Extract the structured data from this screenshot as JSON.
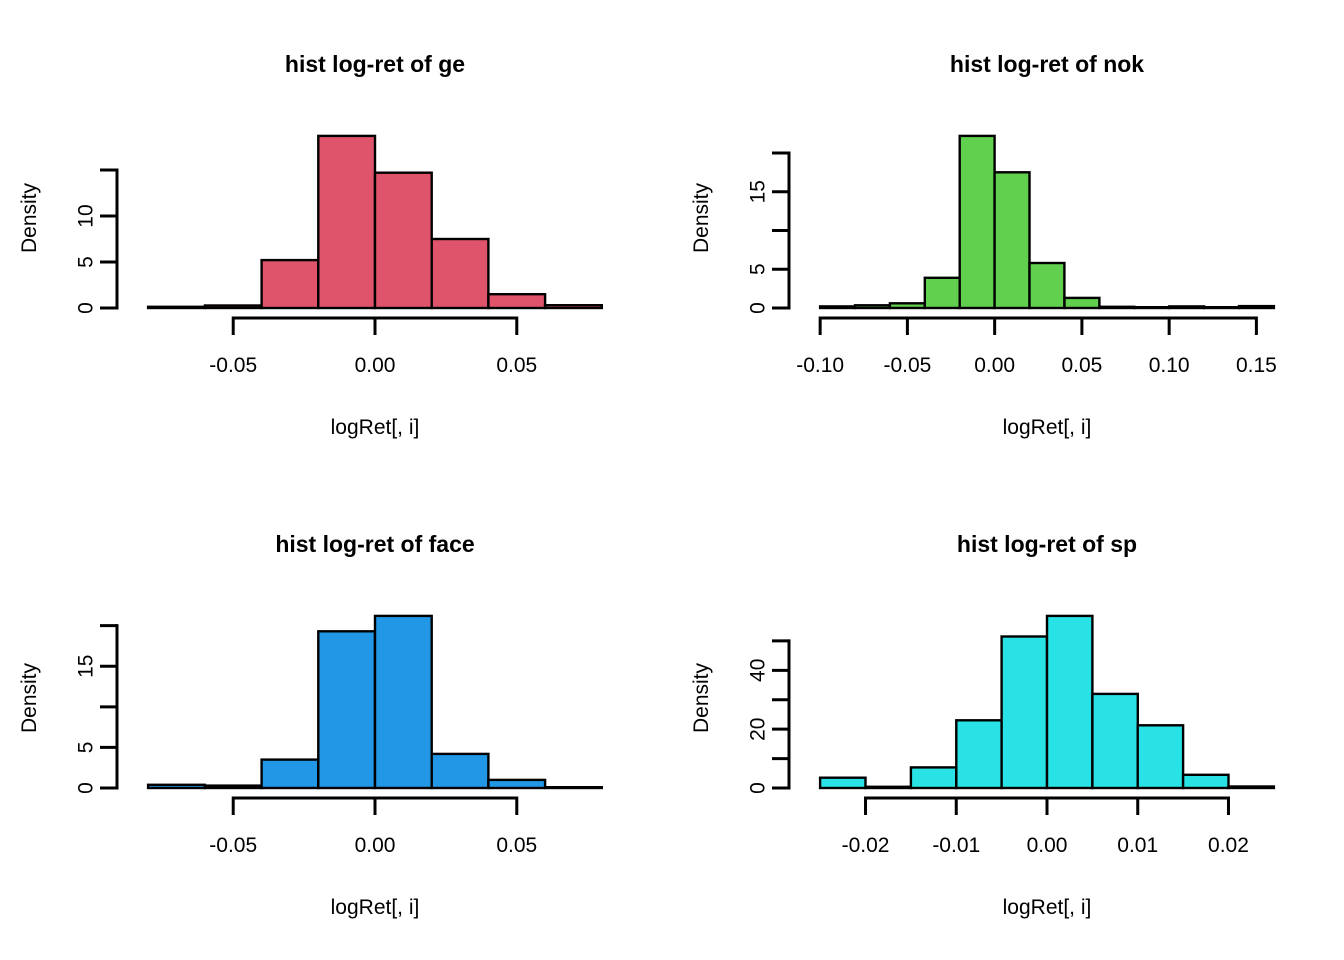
{
  "figure": {
    "background": "#ffffff",
    "layout": "2x2 grid of R base-graphics histograms",
    "grid": false,
    "legend": null
  },
  "chart_data": [
    {
      "type": "bar",
      "subtype": "histogram",
      "title": "hist log-ret of ge",
      "xlabel": "logRet[, i]",
      "ylabel": "Density",
      "color": "#DF536B",
      "bin_start": -0.08,
      "bin_width": 0.02,
      "densities": [
        0.13,
        0.27,
        5.2,
        18.7,
        14.7,
        7.5,
        1.5,
        0.3
      ],
      "x_tick_values": [
        -0.05,
        0,
        0.05
      ],
      "x_ticks": [
        "-0.05",
        "0.00",
        "0.05"
      ],
      "y_tick_values": [
        0,
        5,
        10,
        15
      ],
      "y_ticks": [
        "0",
        "5",
        "10",
        ""
      ],
      "xlim": [
        -0.08,
        0.08
      ],
      "ylim": [
        0,
        15
      ],
      "grid": false,
      "legend": null
    },
    {
      "type": "bar",
      "subtype": "histogram",
      "title": "hist log-ret of nok",
      "xlabel": "logRet[, i]",
      "ylabel": "Density",
      "color": "#61D04F",
      "bin_start": -0.1,
      "bin_width": 0.02,
      "densities": [
        0.2,
        0.35,
        0.6,
        3.9,
        22.2,
        17.5,
        5.8,
        1.3,
        0.15,
        0.1,
        0.2,
        0.1,
        0.25
      ],
      "x_tick_values": [
        -0.1,
        -0.05,
        0,
        0.05,
        0.1,
        0.15
      ],
      "x_ticks": [
        "-0.10",
        "-0.05",
        "0.00",
        "0.05",
        "0.10",
        "0.15"
      ],
      "y_tick_values": [
        0,
        5,
        10,
        15,
        20
      ],
      "y_ticks": [
        "0",
        "5",
        "",
        "15",
        ""
      ],
      "xlim": [
        -0.1,
        0.16
      ],
      "ylim": [
        0,
        20
      ],
      "grid": false,
      "legend": null
    },
    {
      "type": "bar",
      "subtype": "histogram",
      "title": "hist log-ret of face",
      "xlabel": "logRet[, i]",
      "ylabel": "Density",
      "color": "#2297E6",
      "bin_start": -0.08,
      "bin_width": 0.02,
      "densities": [
        0.4,
        0.3,
        3.5,
        19.3,
        21.2,
        4.2,
        1.0,
        0.1
      ],
      "x_tick_values": [
        -0.05,
        0,
        0.05
      ],
      "x_ticks": [
        "-0.05",
        "0.00",
        "0.05"
      ],
      "y_tick_values": [
        0,
        5,
        10,
        15,
        20
      ],
      "y_ticks": [
        "0",
        "5",
        "",
        "15",
        ""
      ],
      "xlim": [
        -0.08,
        0.08
      ],
      "ylim": [
        0,
        20
      ],
      "grid": false,
      "legend": null
    },
    {
      "type": "bar",
      "subtype": "histogram",
      "title": "hist log-ret of sp",
      "xlabel": "logRet[, i]",
      "ylabel": "Density",
      "color": "#28E2E5",
      "bin_start": -0.025,
      "bin_width": 0.005,
      "densities": [
        3.5,
        0.4,
        7.0,
        23.0,
        51.5,
        58.5,
        32.0,
        21.3,
        4.5,
        0.5
      ],
      "x_tick_values": [
        -0.02,
        -0.01,
        0,
        0.01,
        0.02
      ],
      "x_ticks": [
        "-0.02",
        "-0.01",
        "0.00",
        "0.01",
        "0.02"
      ],
      "y_tick_values": [
        0,
        10,
        20,
        30,
        40,
        50
      ],
      "y_ticks": [
        "0",
        "",
        "20",
        "",
        "40",
        ""
      ],
      "xlim": [
        -0.025,
        0.025
      ],
      "ylim": [
        0,
        50
      ],
      "grid": false,
      "legend": null
    }
  ]
}
